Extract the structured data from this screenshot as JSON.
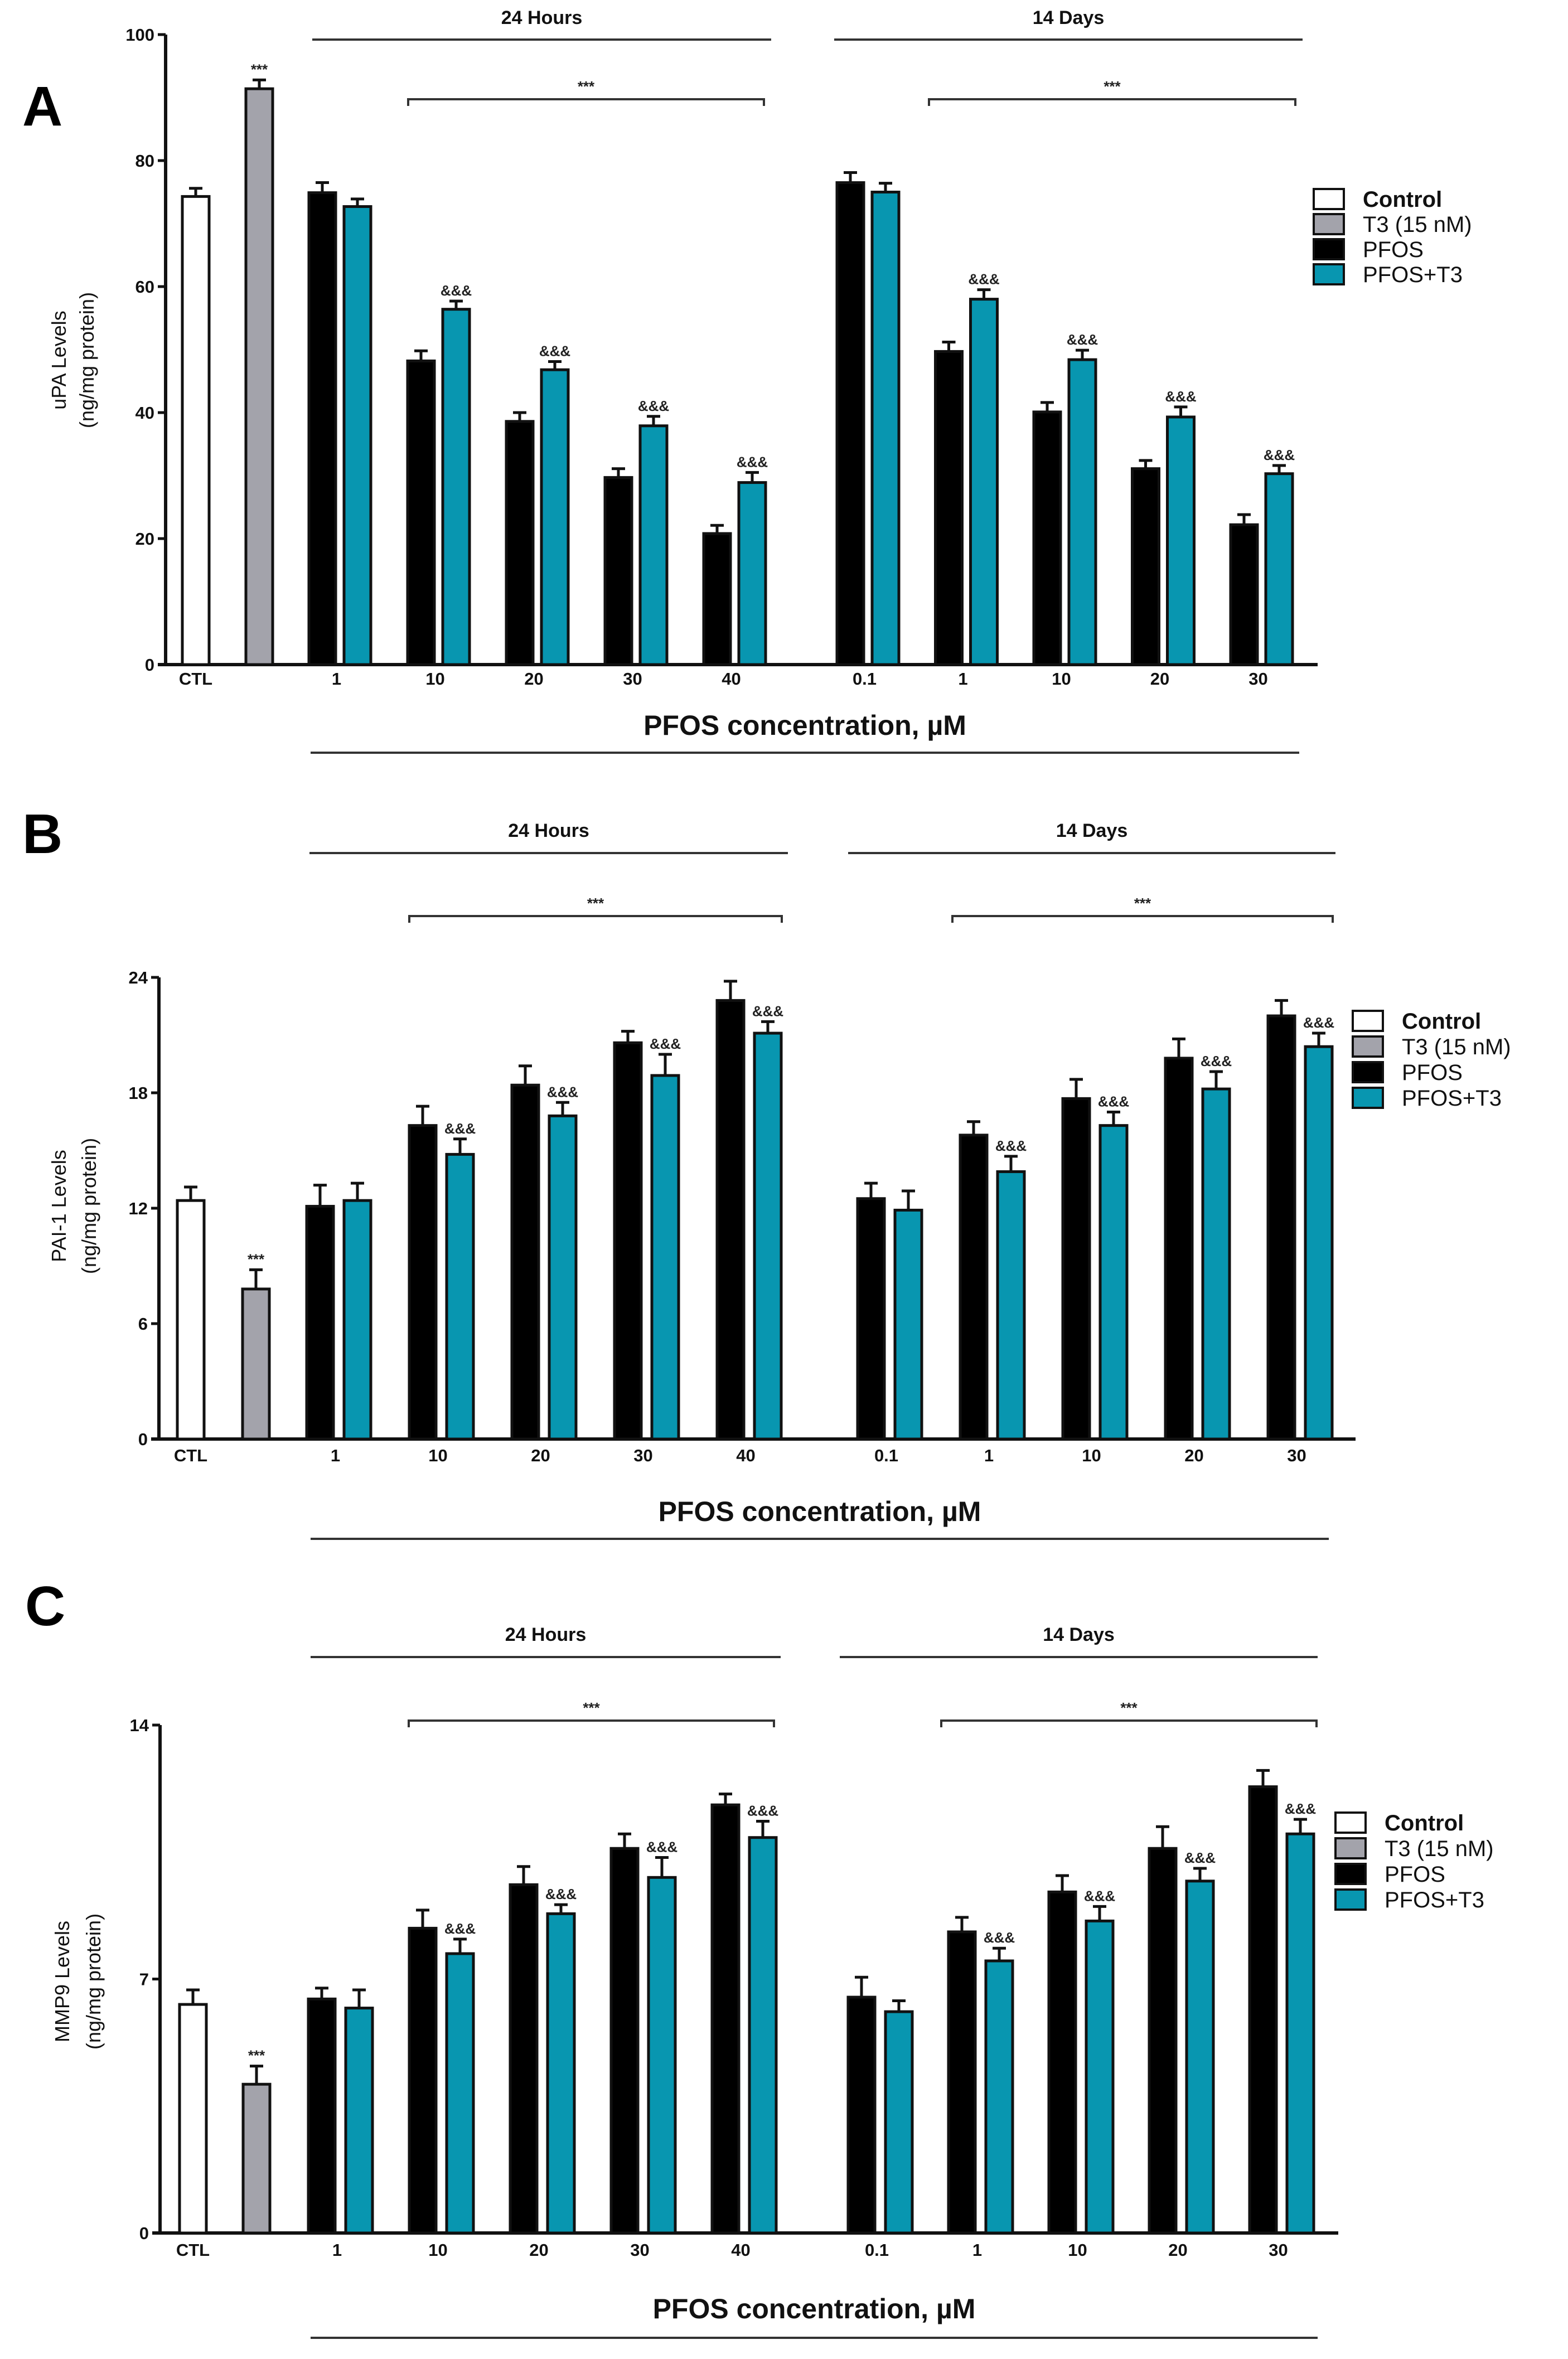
{
  "colors": {
    "control": "#ffffff",
    "t3": "#a3a3ab",
    "pfos": "#000000",
    "pfos_t3": "#0896b0"
  },
  "legend": [
    "Control",
    "T3 (15 nM)",
    "PFOS",
    "PFOS+T3"
  ],
  "chart_data": [
    {
      "type": "bar",
      "panel": "A",
      "ylabel": [
        "uPA Levels",
        "(ng/mg protein)"
      ],
      "xlabel": "PFOS concentration, µM",
      "ylim": [
        0,
        100
      ],
      "yticks": [
        "0",
        "20",
        "40",
        "60",
        "80",
        "100"
      ],
      "ctl_label": "CTL",
      "groups": [
        {
          "name": "24 Hours",
          "categories": [
            "1",
            "10",
            "20",
            "30",
            "40"
          ],
          "pfos": [
            74.9,
            48.2,
            38.6,
            29.7,
            20.8
          ],
          "pfos_err": [
            1.6,
            1.6,
            1.4,
            1.4,
            1.3
          ],
          "pfos_t3": [
            72.7,
            56.4,
            46.8,
            37.9,
            28.9
          ],
          "pfos_t3_err": [
            1.2,
            1.3,
            1.3,
            1.5,
            1.6
          ],
          "bracket_label": "***",
          "t3_marks": [
            "",
            "&&&",
            "&&&",
            "&&&",
            "&&&"
          ]
        },
        {
          "name": "14 Days",
          "categories": [
            "0.1",
            "1",
            "10",
            "20",
            "30"
          ],
          "pfos": [
            76.5,
            49.7,
            40.1,
            31.1,
            22.2
          ],
          "pfos_err": [
            1.6,
            1.5,
            1.5,
            1.3,
            1.6
          ],
          "pfos_t3": [
            75.0,
            58.0,
            48.4,
            39.3,
            30.3
          ],
          "pfos_t3_err": [
            1.4,
            1.5,
            1.5,
            1.6,
            1.3
          ],
          "bracket_label": "***",
          "t3_marks": [
            "",
            "&&&",
            "&&&",
            "&&&",
            "&&&"
          ]
        }
      ],
      "control": 74.3,
      "control_err": 1.3,
      "t3": 91.4,
      "t3_err": 1.4,
      "t3_mark": "***"
    },
    {
      "type": "bar",
      "panel": "B",
      "ylabel": [
        "PAI-1 Levels",
        "(ng/mg protein)"
      ],
      "xlabel": "PFOS concentration, µM",
      "ylim": [
        0,
        24
      ],
      "yticks": [
        "0",
        "6",
        "12",
        "18",
        "24"
      ],
      "ctl_label": "CTL",
      "groups": [
        {
          "name": "24 Hours",
          "categories": [
            "1",
            "10",
            "20",
            "30",
            "40"
          ],
          "pfos": [
            12.1,
            16.3,
            18.4,
            20.6,
            22.8
          ],
          "pfos_err": [
            1.1,
            1.0,
            1.0,
            0.6,
            1.0
          ],
          "pfos_t3": [
            12.4,
            14.8,
            16.8,
            18.9,
            21.1
          ],
          "pfos_t3_err": [
            0.9,
            0.8,
            0.7,
            1.1,
            0.6
          ],
          "bracket_label": "***",
          "t3_marks": [
            "",
            "&&&",
            "&&&",
            "&&&",
            "&&&"
          ]
        },
        {
          "name": "14 Days",
          "categories": [
            "0.1",
            "1",
            "10",
            "20",
            "30"
          ],
          "pfos": [
            12.5,
            15.8,
            17.7,
            19.8,
            22.0
          ],
          "pfos_err": [
            0.8,
            0.7,
            1.0,
            1.0,
            0.8
          ],
          "pfos_t3": [
            11.9,
            13.9,
            16.3,
            18.2,
            20.4
          ],
          "pfos_t3_err": [
            1.0,
            0.8,
            0.7,
            0.9,
            0.7
          ],
          "bracket_label": "***",
          "t3_marks": [
            "",
            "&&&",
            "&&&",
            "&&&",
            "&&&"
          ]
        }
      ],
      "control": 12.4,
      "control_err": 0.7,
      "t3": 7.8,
      "t3_err": 1.0,
      "t3_mark": "***"
    },
    {
      "type": "bar",
      "panel": "C",
      "ylabel": [
        "MMP9 Levels",
        "(ng/mg protein)"
      ],
      "xlabel": "PFOS concentration, µM",
      "ylim": [
        0,
        14
      ],
      "yticks": [
        "0",
        "7",
        "14"
      ],
      "ctl_label": "CTL",
      "groups": [
        {
          "name": "24 Hours",
          "categories": [
            "1",
            "10",
            "20",
            "30",
            "40"
          ],
          "pfos": [
            6.45,
            8.4,
            9.6,
            10.6,
            11.8
          ],
          "pfos_err": [
            0.3,
            0.5,
            0.5,
            0.4,
            0.3
          ],
          "pfos_t3": [
            6.2,
            7.7,
            8.8,
            9.8,
            10.9
          ],
          "pfos_t3_err": [
            0.5,
            0.4,
            0.25,
            0.55,
            0.45
          ],
          "bracket_label": "***",
          "t3_marks": [
            "",
            "&&&",
            "&&&",
            "&&&",
            "&&&"
          ]
        },
        {
          "name": "14 Days",
          "categories": [
            "0.1",
            "1",
            "10",
            "20",
            "30"
          ],
          "pfos": [
            6.5,
            8.3,
            9.4,
            10.6,
            12.3
          ],
          "pfos_err": [
            0.55,
            0.4,
            0.45,
            0.6,
            0.45
          ],
          "pfos_t3": [
            6.1,
            7.5,
            8.6,
            9.7,
            11.0
          ],
          "pfos_t3_err": [
            0.3,
            0.35,
            0.4,
            0.35,
            0.4
          ],
          "bracket_label": "***",
          "t3_marks": [
            "",
            "&&&",
            "&&&",
            "&&&",
            "&&&"
          ]
        }
      ],
      "control": 6.3,
      "control_err": 0.4,
      "t3": 4.1,
      "t3_err": 0.5,
      "t3_mark": "***"
    }
  ]
}
